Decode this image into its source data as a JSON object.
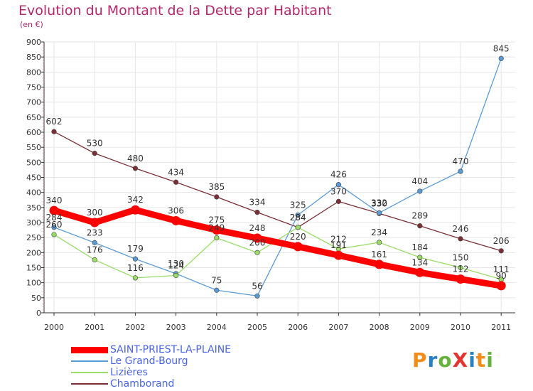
{
  "chart_data": {
    "type": "line",
    "title": "Evolution du Montant de la Dette par Habitant",
    "subtitle": "(en €)",
    "x": [
      "2000",
      "2001",
      "2002",
      "2003",
      "2004",
      "2005",
      "2006",
      "2007",
      "2008",
      "2009",
      "2010",
      "2011"
    ],
    "ylim": [
      0,
      900
    ],
    "yticks": [
      0,
      50,
      100,
      150,
      200,
      250,
      300,
      350,
      400,
      450,
      500,
      550,
      600,
      650,
      700,
      750,
      800,
      850,
      900
    ],
    "grid": true,
    "legend_position": "bottom-left",
    "series": [
      {
        "name": "SAINT-PRIEST-LA-PLAINE",
        "color": "#ff0000",
        "values": [
          340,
          300,
          342,
          306,
          275,
          248,
          220,
          191,
          161,
          134,
          112,
          90
        ]
      },
      {
        "name": "Le Grand-Bourg",
        "color": "#5b9bd5",
        "values": [
          284,
          233,
          179,
          130,
          75,
          56,
          325,
          426,
          332,
          404,
          470,
          845
        ]
      },
      {
        "name": "Lizières",
        "color": "#99dd66",
        "values": [
          260,
          176,
          116,
          124,
          249,
          200,
          284,
          212,
          234,
          184,
          150,
          111
        ]
      },
      {
        "name": "Chamborand",
        "color": "#7a2f35",
        "values": [
          602,
          530,
          480,
          434,
          385,
          334,
          284,
          370,
          330,
          289,
          246,
          206
        ]
      }
    ]
  },
  "logo": {
    "text": "ProXiti",
    "colors": [
      "#f28c1b",
      "#2a7fc1",
      "#65b33a",
      "#e3342f",
      "#2a7fc1",
      "#f28c1b",
      "#65b33a"
    ]
  }
}
